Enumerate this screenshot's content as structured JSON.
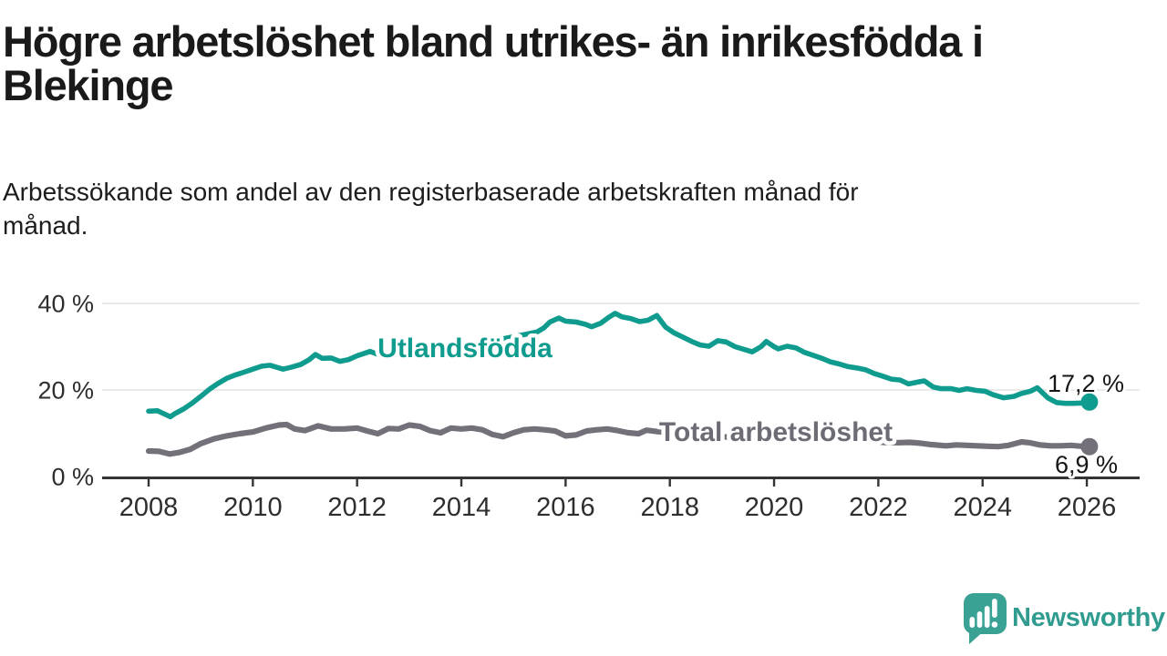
{
  "header": {
    "title_line1": "Högre arbetslöshet bland utrikes- än inrikesfödda i",
    "title_line2": "Blekinge",
    "subtitle_line1": "Arbetssökande som andel av den registerbaserade arbetskraften månad för",
    "subtitle_line2": "månad."
  },
  "colors": {
    "teal": "#0f9b8e",
    "gray": "#747079",
    "gray_label": "#6e6b75",
    "ink": "#1a1a1a",
    "grid": "#e3e3e3",
    "axis": "#343434",
    "brand": "#2f9c8f",
    "brand_bubble": "#3aa295"
  },
  "chart_data": {
    "type": "line",
    "title": "Högre arbetslöshet bland utrikes- än inrikesfödda i Blekinge",
    "subtitle": "Arbetssökande som andel av den registerbaserade arbetskraften månad för månad.",
    "xlabel": "",
    "ylabel": "",
    "xlim": [
      2007.1,
      2027.0
    ],
    "ylim": [
      0,
      43
    ],
    "grid": "horizontal",
    "legend_position": "inline-labels",
    "x_ticks": [
      {
        "value": 2008,
        "label": "2008"
      },
      {
        "value": 2010,
        "label": "2010"
      },
      {
        "value": 2012,
        "label": "2012"
      },
      {
        "value": 2014,
        "label": "2014"
      },
      {
        "value": 2016,
        "label": "2016"
      },
      {
        "value": 2018,
        "label": "2018"
      },
      {
        "value": 2020,
        "label": "2020"
      },
      {
        "value": 2022,
        "label": "2022"
      },
      {
        "value": 2024,
        "label": "2024"
      },
      {
        "value": 2026,
        "label": "2026"
      }
    ],
    "y_ticks": [
      {
        "value": 0,
        "label": "0 %"
      },
      {
        "value": 20,
        "label": "20 %"
      },
      {
        "value": 40,
        "label": "40 %"
      }
    ],
    "series": [
      {
        "name": "Utlandsfödda",
        "color": "#0f9b8e",
        "end_label": "17,2 %",
        "end_value": 17.2,
        "points": [
          [
            2008.0,
            15.1
          ],
          [
            2008.17,
            15.2
          ],
          [
            2008.33,
            14.3
          ],
          [
            2008.42,
            13.8
          ],
          [
            2008.5,
            14.5
          ],
          [
            2008.67,
            15.6
          ],
          [
            2008.83,
            16.9
          ],
          [
            2009.0,
            18.5
          ],
          [
            2009.17,
            20.2
          ],
          [
            2009.33,
            21.5
          ],
          [
            2009.5,
            22.7
          ],
          [
            2009.67,
            23.5
          ],
          [
            2009.83,
            24.1
          ],
          [
            2010.0,
            24.8
          ],
          [
            2010.17,
            25.5
          ],
          [
            2010.33,
            25.7
          ],
          [
            2010.5,
            25.1
          ],
          [
            2010.58,
            24.8
          ],
          [
            2010.75,
            25.3
          ],
          [
            2010.92,
            25.9
          ],
          [
            2011.08,
            27.0
          ],
          [
            2011.2,
            28.2
          ],
          [
            2011.33,
            27.3
          ],
          [
            2011.5,
            27.4
          ],
          [
            2011.67,
            26.6
          ],
          [
            2011.83,
            27.0
          ],
          [
            2012.0,
            27.9
          ],
          [
            2012.25,
            28.9
          ],
          [
            2012.45,
            28.0
          ],
          [
            2012.6,
            27.6
          ],
          [
            2012.83,
            28.2
          ],
          [
            2013.0,
            28.7
          ],
          [
            2013.25,
            29.0
          ],
          [
            2013.5,
            29.3
          ],
          [
            2013.75,
            29.7
          ],
          [
            2014.0,
            30.1
          ],
          [
            2014.25,
            30.6
          ],
          [
            2014.5,
            31.1
          ],
          [
            2014.75,
            31.7
          ],
          [
            2015.0,
            32.3
          ],
          [
            2015.25,
            32.9
          ],
          [
            2015.45,
            33.4
          ],
          [
            2015.58,
            34.3
          ],
          [
            2015.7,
            35.7
          ],
          [
            2015.87,
            36.6
          ],
          [
            2016.0,
            35.9
          ],
          [
            2016.2,
            35.7
          ],
          [
            2016.37,
            35.2
          ],
          [
            2016.5,
            34.6
          ],
          [
            2016.67,
            35.4
          ],
          [
            2016.83,
            36.8
          ],
          [
            2016.95,
            37.7
          ],
          [
            2017.08,
            36.9
          ],
          [
            2017.25,
            36.5
          ],
          [
            2017.42,
            35.8
          ],
          [
            2017.58,
            36.1
          ],
          [
            2017.75,
            37.2
          ],
          [
            2017.92,
            34.5
          ],
          [
            2018.08,
            33.2
          ],
          [
            2018.25,
            32.2
          ],
          [
            2018.42,
            31.2
          ],
          [
            2018.58,
            30.4
          ],
          [
            2018.75,
            30.1
          ],
          [
            2018.92,
            31.4
          ],
          [
            2019.08,
            31.1
          ],
          [
            2019.25,
            30.0
          ],
          [
            2019.42,
            29.4
          ],
          [
            2019.58,
            28.8
          ],
          [
            2019.75,
            30.0
          ],
          [
            2019.85,
            31.2
          ],
          [
            2020.0,
            30.0
          ],
          [
            2020.08,
            29.5
          ],
          [
            2020.25,
            30.1
          ],
          [
            2020.42,
            29.7
          ],
          [
            2020.58,
            28.7
          ],
          [
            2020.75,
            28.0
          ],
          [
            2020.92,
            27.3
          ],
          [
            2021.08,
            26.5
          ],
          [
            2021.25,
            26.0
          ],
          [
            2021.42,
            25.4
          ],
          [
            2021.58,
            25.1
          ],
          [
            2021.75,
            24.7
          ],
          [
            2021.92,
            23.8
          ],
          [
            2022.08,
            23.2
          ],
          [
            2022.25,
            22.5
          ],
          [
            2022.42,
            22.3
          ],
          [
            2022.58,
            21.4
          ],
          [
            2022.75,
            21.8
          ],
          [
            2022.88,
            22.1
          ],
          [
            2023.05,
            20.7
          ],
          [
            2023.2,
            20.3
          ],
          [
            2023.4,
            20.3
          ],
          [
            2023.55,
            19.9
          ],
          [
            2023.7,
            20.3
          ],
          [
            2023.88,
            19.9
          ],
          [
            2024.05,
            19.7
          ],
          [
            2024.2,
            18.9
          ],
          [
            2024.4,
            18.2
          ],
          [
            2024.6,
            18.5
          ],
          [
            2024.75,
            19.2
          ],
          [
            2024.92,
            19.7
          ],
          [
            2025.05,
            20.5
          ],
          [
            2025.25,
            18.2
          ],
          [
            2025.42,
            17.1
          ],
          [
            2025.58,
            16.9
          ],
          [
            2025.75,
            16.9
          ],
          [
            2025.92,
            17.0
          ],
          [
            2026.05,
            17.2
          ]
        ]
      },
      {
        "name": "Total arbetslöshet",
        "color": "#747079",
        "end_label": "6,9 %",
        "end_value": 6.9,
        "points": [
          [
            2008.0,
            5.9
          ],
          [
            2008.2,
            5.8
          ],
          [
            2008.4,
            5.2
          ],
          [
            2008.6,
            5.6
          ],
          [
            2008.8,
            6.3
          ],
          [
            2009.0,
            7.6
          ],
          [
            2009.25,
            8.7
          ],
          [
            2009.5,
            9.4
          ],
          [
            2009.75,
            9.9
          ],
          [
            2010.0,
            10.3
          ],
          [
            2010.25,
            11.2
          ],
          [
            2010.5,
            11.9
          ],
          [
            2010.65,
            12.0
          ],
          [
            2010.8,
            11.0
          ],
          [
            2011.0,
            10.6
          ],
          [
            2011.25,
            11.7
          ],
          [
            2011.5,
            11.0
          ],
          [
            2011.75,
            11.0
          ],
          [
            2012.0,
            11.2
          ],
          [
            2012.2,
            10.5
          ],
          [
            2012.4,
            9.9
          ],
          [
            2012.6,
            11.1
          ],
          [
            2012.8,
            11.0
          ],
          [
            2013.0,
            11.9
          ],
          [
            2013.2,
            11.6
          ],
          [
            2013.4,
            10.6
          ],
          [
            2013.6,
            10.1
          ],
          [
            2013.8,
            11.2
          ],
          [
            2014.0,
            11.0
          ],
          [
            2014.2,
            11.2
          ],
          [
            2014.4,
            10.8
          ],
          [
            2014.6,
            9.7
          ],
          [
            2014.8,
            9.2
          ],
          [
            2015.0,
            10.1
          ],
          [
            2015.2,
            10.8
          ],
          [
            2015.4,
            11.0
          ],
          [
            2015.6,
            10.8
          ],
          [
            2015.8,
            10.5
          ],
          [
            2016.0,
            9.4
          ],
          [
            2016.2,
            9.6
          ],
          [
            2016.4,
            10.5
          ],
          [
            2016.6,
            10.8
          ],
          [
            2016.8,
            11.0
          ],
          [
            2017.0,
            10.6
          ],
          [
            2017.2,
            10.1
          ],
          [
            2017.4,
            9.9
          ],
          [
            2017.55,
            10.7
          ],
          [
            2017.75,
            10.4
          ],
          [
            2018.0,
            10.2
          ],
          [
            2018.3,
            9.9
          ],
          [
            2018.6,
            9.5
          ],
          [
            2019.0,
            9.2
          ],
          [
            2019.4,
            8.9
          ],
          [
            2019.8,
            9.1
          ],
          [
            2020.2,
            9.9
          ],
          [
            2020.45,
            10.1
          ],
          [
            2020.7,
            9.7
          ],
          [
            2021.0,
            9.2
          ],
          [
            2021.4,
            8.7
          ],
          [
            2021.8,
            8.3
          ],
          [
            2022.1,
            7.9
          ],
          [
            2022.4,
            7.8
          ],
          [
            2022.6,
            7.9
          ],
          [
            2022.8,
            7.7
          ],
          [
            2023.0,
            7.4
          ],
          [
            2023.3,
            7.1
          ],
          [
            2023.5,
            7.3
          ],
          [
            2023.7,
            7.2
          ],
          [
            2023.9,
            7.1
          ],
          [
            2024.1,
            7.0
          ],
          [
            2024.3,
            6.9
          ],
          [
            2024.5,
            7.2
          ],
          [
            2024.75,
            8.0
          ],
          [
            2024.9,
            7.8
          ],
          [
            2025.1,
            7.3
          ],
          [
            2025.3,
            7.1
          ],
          [
            2025.5,
            7.1
          ],
          [
            2025.7,
            7.2
          ],
          [
            2025.9,
            7.0
          ],
          [
            2026.05,
            6.9
          ]
        ]
      }
    ]
  },
  "branding": {
    "name": "Newsworthy",
    "logo_icon": "speech-bubble-bar-chart-icon"
  }
}
